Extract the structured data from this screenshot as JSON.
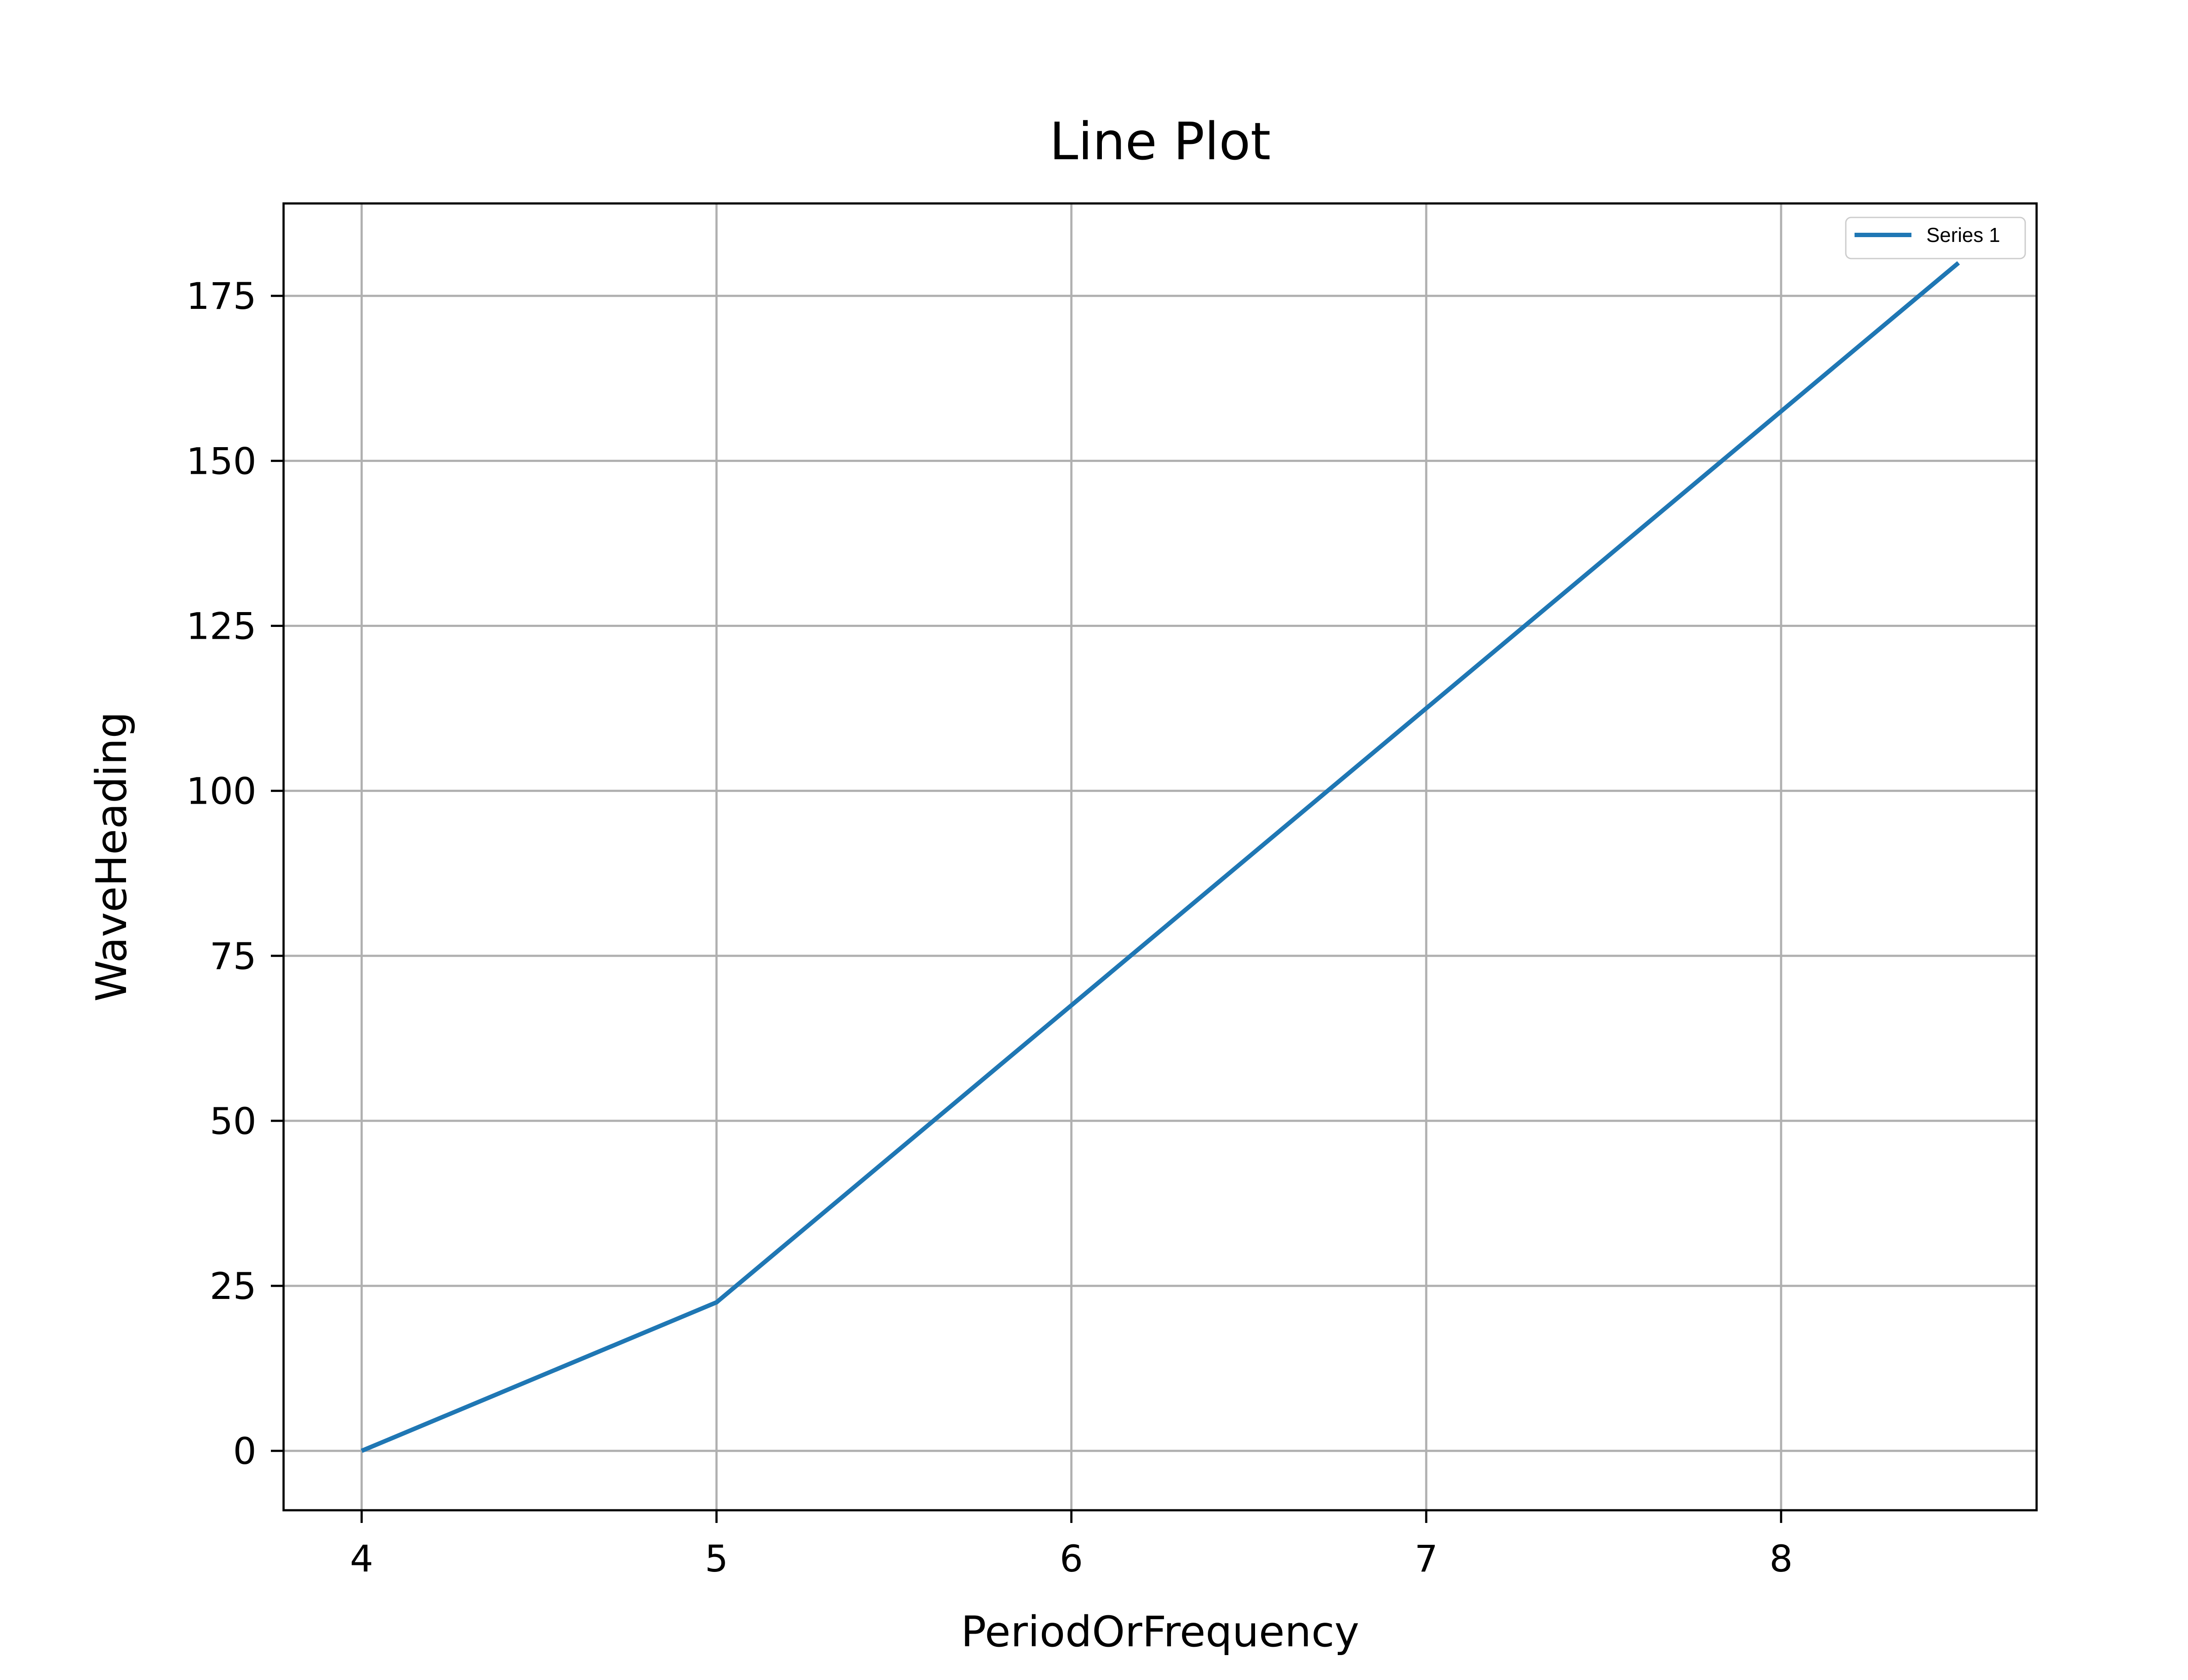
{
  "chart_data": {
    "type": "line",
    "title": "Line Plot",
    "xlabel": "PeriodOrFrequency",
    "ylabel": "WaveHeading",
    "xlim": [
      3.78,
      8.72
    ],
    "ylim": [
      -9,
      189
    ],
    "x_ticks": [
      4,
      5,
      6,
      7,
      8
    ],
    "y_ticks": [
      0,
      25,
      50,
      75,
      100,
      125,
      150,
      175
    ],
    "grid": true,
    "legend_position": "top-right",
    "series": [
      {
        "name": "Series 1",
        "color": "#1f77b4",
        "x": [
          4,
          5,
          6,
          7,
          8.5
        ],
        "y": [
          0,
          22.5,
          67.5,
          112.5,
          180
        ]
      }
    ]
  }
}
